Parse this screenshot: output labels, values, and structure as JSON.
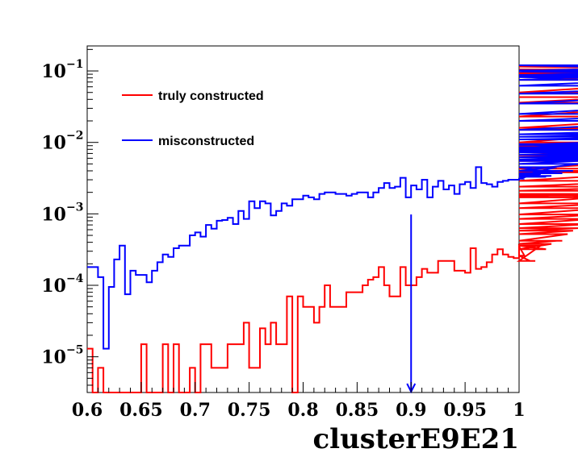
{
  "chart_data": {
    "type": "histogram-line",
    "xlabel": "clusterE9E21",
    "ylabel": "",
    "xlim": [
      0.6,
      1.0
    ],
    "ylim_log10": [
      -5.5,
      -0.65
    ],
    "yscale": "log",
    "bin_width": 0.005,
    "x_ticks": [
      "0.6",
      "0.65",
      "0.7",
      "0.75",
      "0.8",
      "0.85",
      "0.9",
      "0.95",
      "1"
    ],
    "y_ticks": [
      {
        "base": "10",
        "exp": "−1",
        "value": 0.1
      },
      {
        "base": "10",
        "exp": "−2",
        "value": 0.01
      },
      {
        "base": "10",
        "exp": "−3",
        "value": 0.001
      },
      {
        "base": "10",
        "exp": "−4",
        "value": 0.0001
      },
      {
        "base": "10",
        "exp": "−5",
        "value": 1e-05
      }
    ],
    "legend_position": "top-left",
    "cut_marker": {
      "x": 0.9,
      "y_top": 0.00098,
      "color": "#0000ff"
    },
    "series": [
      {
        "name": "truly constructed",
        "color": "#ff0000",
        "values": [
          1.3e-05,
          0,
          7e-06,
          0,
          0,
          0,
          0,
          0,
          0,
          0,
          1.5e-05,
          0,
          0,
          0,
          1.5e-05,
          0,
          1.5e-05,
          0,
          0,
          7e-06,
          0,
          1.5e-05,
          1.5e-05,
          7e-06,
          7e-06,
          7e-06,
          1.5e-05,
          1.5e-05,
          1.5e-05,
          3e-05,
          7e-06,
          7e-06,
          2.5e-05,
          1.5e-05,
          3e-05,
          1.5e-05,
          1.5e-05,
          7e-05,
          0,
          7e-05,
          5e-05,
          5e-05,
          3e-05,
          5e-05,
          0.0001,
          5e-05,
          5e-05,
          5e-05,
          8e-05,
          8e-05,
          8e-05,
          0.0001,
          0.00012,
          0.00013,
          0.00018,
          0.0001,
          7e-05,
          7e-05,
          0.00018,
          0.0001,
          0.0001,
          0.00013,
          0.00017,
          0.00015,
          0.00015,
          0.00022,
          0.00022,
          0.00022,
          0.00016,
          0.00016,
          0.00015,
          0.00033,
          0.00017,
          0.00018,
          0.00021,
          0.00027,
          0.00032,
          0.00027,
          0.00025,
          0.00024,
          0.00035,
          0.00026,
          0.00022,
          0.00022,
          0.00036,
          0.00032,
          0.00038,
          0.00042,
          0.00042,
          0.00052,
          0.00058,
          0.00063,
          0.00063,
          0.00072,
          0.00085,
          0.00098,
          0.0012,
          0.0014,
          0.0018,
          0.0019,
          0.0017,
          0.0021,
          0.0021,
          0.0024,
          0.0029,
          0.0038,
          0.0043,
          0.0055,
          0.0066,
          0.0088,
          0.01,
          0.015,
          0.016,
          0.023,
          0.036,
          0.05,
          0.075,
          0.095,
          0.115,
          0.115,
          0.105,
          0.092,
          0.043
        ],
        "label_ref": "legend.truly"
      },
      {
        "name": "misconstructed",
        "color": "#0000ff",
        "values": [
          0.00018,
          0.00018,
          0.00013,
          1.3e-05,
          9.5e-05,
          0.00023,
          0.00036,
          7.5e-05,
          0.00016,
          0.00014,
          0.00014,
          0.00011,
          0.00016,
          0.00021,
          0.00027,
          0.00025,
          0.00033,
          0.00036,
          0.00036,
          0.0005,
          0.00055,
          0.00048,
          0.0007,
          0.00062,
          0.0008,
          0.00082,
          0.00088,
          0.00072,
          0.0011,
          0.00085,
          0.0015,
          0.0012,
          0.0015,
          0.0014,
          0.00095,
          0.0011,
          0.0014,
          0.0013,
          0.0016,
          0.0016,
          0.0018,
          0.0017,
          0.0016,
          0.0019,
          0.002,
          0.002,
          0.0019,
          0.0019,
          0.0018,
          0.0019,
          0.002,
          0.002,
          0.0017,
          0.002,
          0.0023,
          0.0027,
          0.0023,
          0.0024,
          0.0032,
          0.0017,
          0.0025,
          0.0022,
          0.003,
          0.0017,
          0.0024,
          0.0029,
          0.0022,
          0.0025,
          0.0019,
          0.0026,
          0.0028,
          0.0023,
          0.0045,
          0.0027,
          0.0026,
          0.0024,
          0.0028,
          0.0029,
          0.003,
          0.003,
          0.0031,
          0.0031,
          0.0034,
          0.0033,
          0.0036,
          0.0033,
          0.0034,
          0.0045,
          0.0037,
          0.004,
          0.004,
          0.005,
          0.005,
          0.0056,
          0.0055,
          0.0058,
          0.0062,
          0.0067,
          0.0072,
          0.008,
          0.0095,
          0.0075,
          0.0078,
          0.008,
          0.0082,
          0.0086,
          0.0092,
          0.011,
          0.012,
          0.013,
          0.015,
          0.02,
          0.025,
          0.035,
          0.048,
          0.062,
          0.082,
          0.075,
          0.098,
          0.088,
          0.1,
          0.12,
          0.102,
          0.085
        ],
        "label_ref": "legend.mis"
      }
    ]
  },
  "legend": {
    "truly": "truly constructed",
    "mis": "misconstructed"
  }
}
